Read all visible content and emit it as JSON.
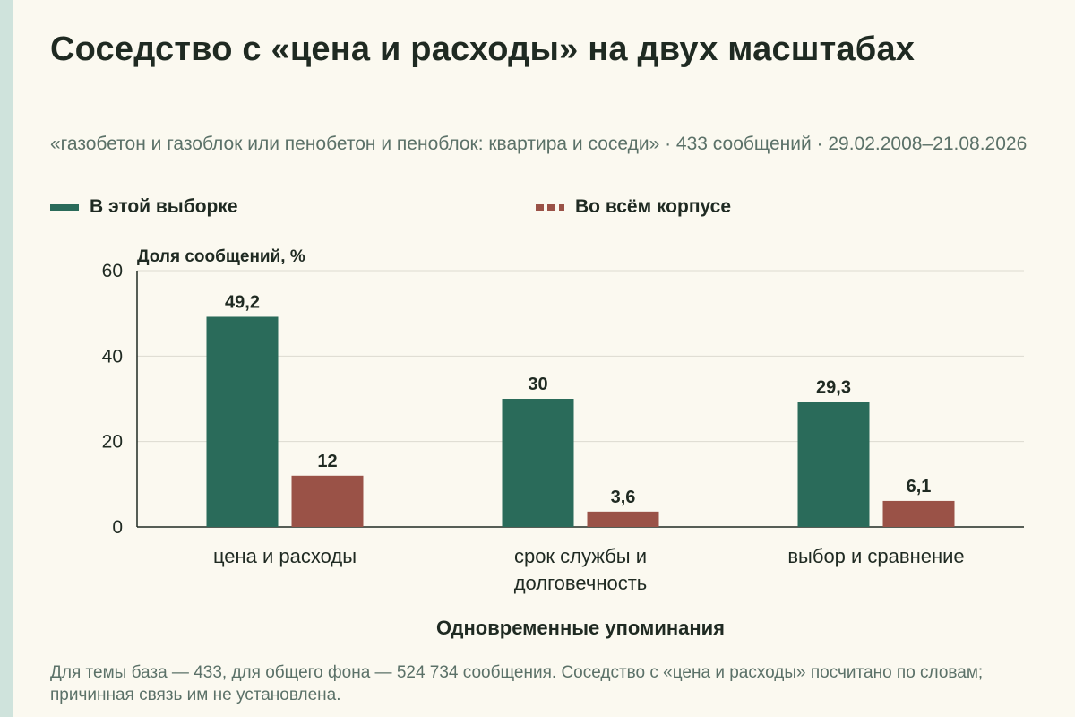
{
  "title": "Соседство с «цена и расходы» на двух масштабах",
  "subtitle": "«газобетон и газоблок или пенобетон и пеноблок: квартира и соседи» · 433 сообщений · 29.02.2008–21.08.2026",
  "note": "Для темы база — 433, для общего фона — 524 734 сообщения. Соседство с «цена и расходы» посчитано по словам; причинная связь им не установлена.",
  "colors": {
    "sample": "#2a6b5a",
    "corpus": "#9a5247",
    "accent_strip": "#cfe3dc"
  },
  "chart_data": {
    "type": "bar",
    "categories": [
      "цена и расходы",
      "срок службы и долговечность",
      "выбор и сравнение"
    ],
    "category_lines": [
      [
        "цена и расходы"
      ],
      [
        "срок службы и",
        "долговечность"
      ],
      [
        "выбор и сравнение"
      ]
    ],
    "series": [
      {
        "name": "В этой выборке",
        "values": [
          49.2,
          30,
          29.3
        ],
        "labels": [
          "49,2",
          "30",
          "29,3"
        ]
      },
      {
        "name": "Во всём корпусе",
        "values": [
          12,
          3.6,
          6.1
        ],
        "labels": [
          "12",
          "3,6",
          "6,1"
        ]
      }
    ],
    "ylabel": "Доля сообщений, %",
    "xlabel": "Одновременные упоминания",
    "ylim": [
      0,
      60
    ],
    "yticks": [
      0,
      20,
      40,
      60
    ],
    "grid": true,
    "legend_position": "top"
  }
}
